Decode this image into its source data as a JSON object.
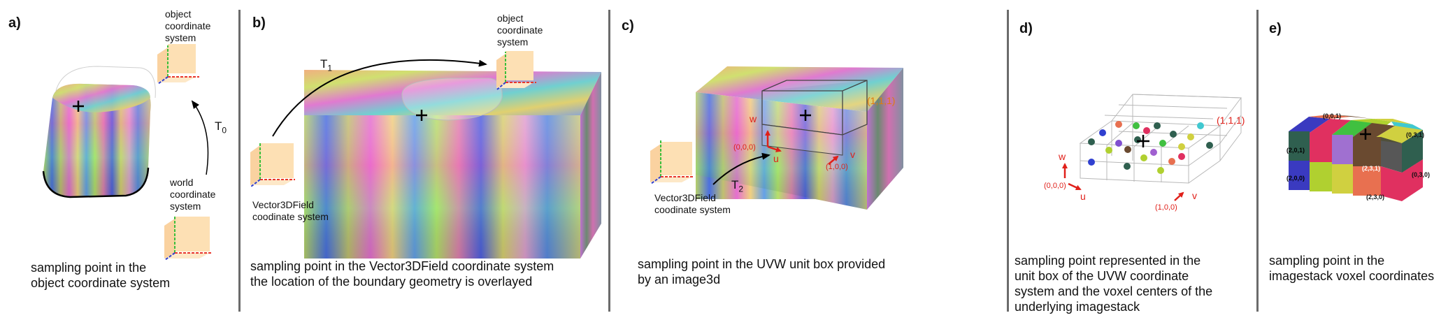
{
  "panels": {
    "a": {
      "label": "a)",
      "object_cs": "object\ncoordinate\nsystem",
      "transform": "T",
      "transform_sub": "0",
      "world_cs": "world\ncoordinate\nsystem",
      "caption": "sampling point in the\nobject coordinate system"
    },
    "b": {
      "label": "b)",
      "object_cs": "object\ncoordinate\nsystem",
      "transform": "T",
      "transform_sub": "1",
      "field_cs": "Vector3DField\ncoodinate system",
      "caption": "sampling point in the Vector3DField coordinate system\nthe location of the boundary geometry is overlayed"
    },
    "c": {
      "label": "c)",
      "corner_max": "(1,1,1)",
      "origin": "(0,0,0)",
      "v_corner": "(1,0,0)",
      "axis_w": "w",
      "axis_u": "u",
      "axis_v": "v",
      "transform": "T",
      "transform_sub": "2",
      "field_cs": "Vector3DField\ncoodinate system",
      "caption": "sampling point in the UVW unit box provided\nby an image3d"
    },
    "d": {
      "label": "d)",
      "corner_max": "(1,1,1)",
      "origin": "(0,0,0)",
      "v_corner": "(1,0,0)",
      "axis_w": "w",
      "axis_u": "u",
      "axis_v": "v",
      "caption": "sampling point represented in the\nunit box of the UVW coordinate\nsystem and the voxel centers of the\nunderlying imagestack"
    },
    "e": {
      "label": "e)",
      "voxel_labels": [
        "(0,0,1)",
        "(0,3,1)",
        "(2,0,1)",
        "(2,3,1)",
        "(2,0,0)",
        "(0,3,0)",
        "(2,3,0)"
      ],
      "caption": "sampling point in the\nimagestack voxel coordinates"
    }
  },
  "colors": {
    "divider": "#6b6b6b",
    "axis_red": "#e8352b",
    "axis_green": "#3bbf3b",
    "axis_blue": "#3040d0",
    "cs_panel": "#fde0b4",
    "label_red": "#e0201a",
    "label_orange": "#e07a10"
  }
}
